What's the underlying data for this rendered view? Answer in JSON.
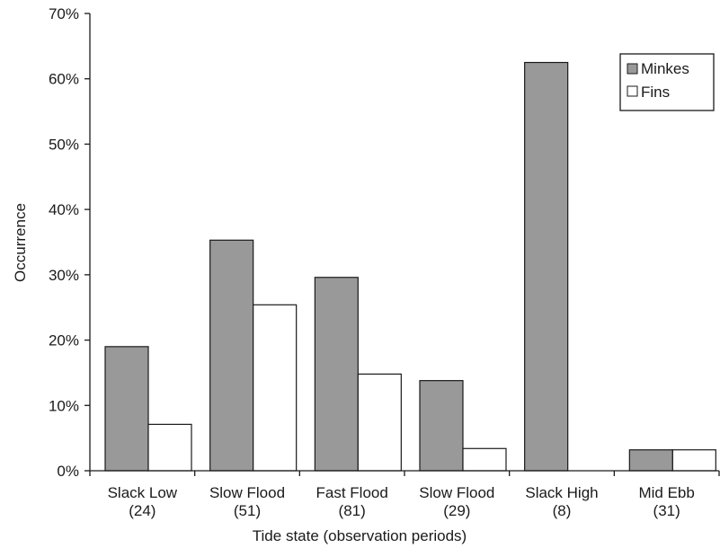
{
  "chart_data": {
    "type": "bar",
    "categories": [
      [
        "Slack Low",
        "(24)"
      ],
      [
        "Slow Flood",
        "(51)"
      ],
      [
        "Fast Flood",
        "(81)"
      ],
      [
        "Slow Flood",
        "(29)"
      ],
      [
        "Slack High",
        "(8)"
      ],
      [
        "Mid Ebb",
        "(31)"
      ]
    ],
    "series": [
      {
        "name": "Minkes",
        "values": [
          19,
          35.3,
          29.6,
          13.8,
          62.5,
          3.2
        ],
        "color": "#999999"
      },
      {
        "name": "Fins",
        "values": [
          7.1,
          25.4,
          14.8,
          3.4,
          0,
          3.2
        ],
        "color": "#ffffff"
      }
    ],
    "yticks": [
      "0%",
      "10%",
      "20%",
      "30%",
      "40%",
      "50%",
      "60%",
      "70%"
    ],
    "ylim": [
      0,
      70
    ],
    "xlabel": "Tide state (observation periods)",
    "ylabel": "Occurrence",
    "legend_position": "top-right",
    "grid": false
  }
}
